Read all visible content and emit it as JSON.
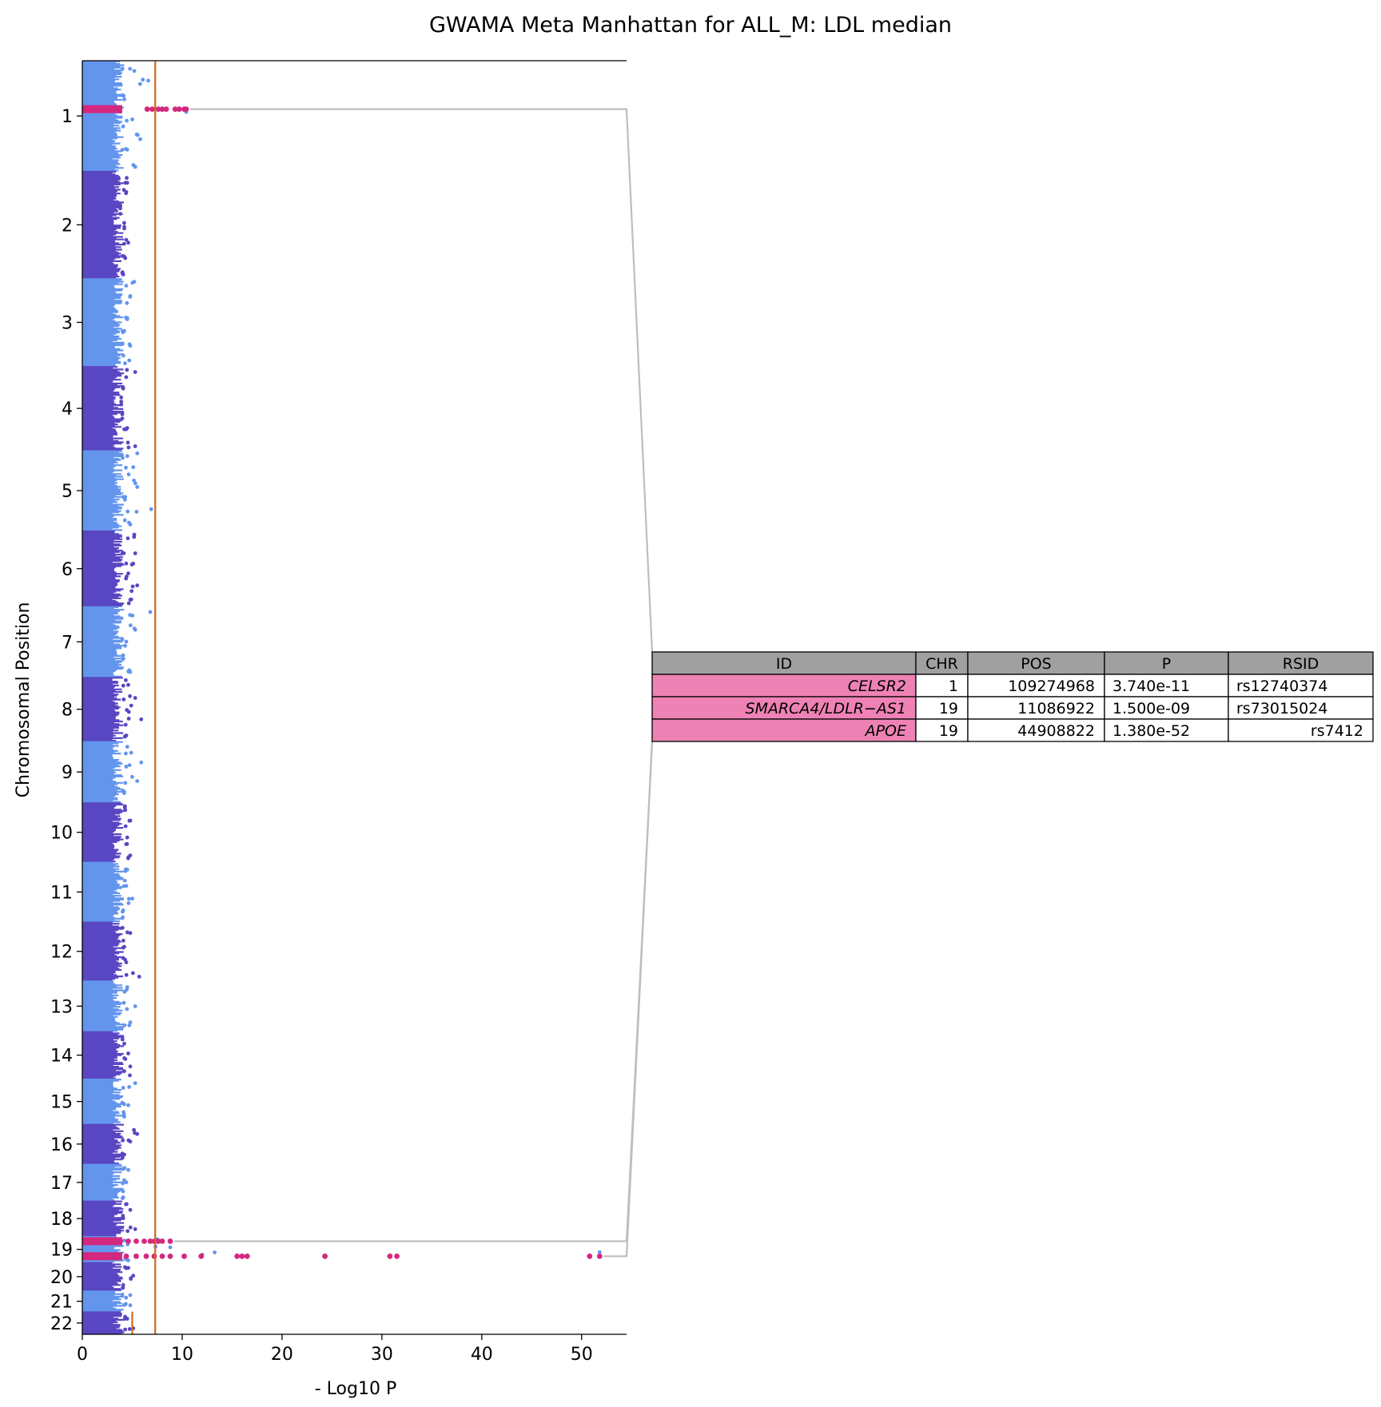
{
  "chart_data": {
    "type": "scatter",
    "title": "GWAMA Meta Manhattan for ALL_M: LDL median",
    "xlabel": "- Log10 P",
    "ylabel": "Chromosomal Position",
    "xlim": [
      0,
      54.5
    ],
    "x_ticks": [
      0,
      10,
      20,
      30,
      40,
      50
    ],
    "orientation": "horizontal",
    "grid": false,
    "chromosomes": [
      "1",
      "2",
      "3",
      "4",
      "5",
      "6",
      "7",
      "8",
      "9",
      "10",
      "11",
      "12",
      "13",
      "14",
      "15",
      "16",
      "17",
      "18",
      "19",
      "20",
      "21",
      "22"
    ],
    "chromosome_lengths_mb": [
      249,
      242,
      198,
      190,
      181,
      171,
      159,
      145,
      138,
      134,
      135,
      133,
      114,
      107,
      102,
      90,
      83,
      80,
      59,
      64,
      47,
      51
    ],
    "genome_wide_threshold": 7.3,
    "suggestive_threshold": 5.0,
    "colors": {
      "odd_chromosome": "#6495ED",
      "even_chromosome": "#5946C2",
      "highlight": "#D4287E",
      "threshold_line": "#D2691E",
      "connector": "#BEBEBE",
      "table_header": "#A0A0A0",
      "table_id_cell": "#EE82B4"
    },
    "background_peak_max": [
      [
        5.2,
        6.6,
        4.2,
        10.4,
        5.0,
        5.8,
        4.5,
        5.3
      ],
      [
        4.5,
        4.4,
        3.8,
        4.2,
        4.6,
        4.3,
        4.1
      ],
      [
        5.2,
        4.8,
        4.5,
        4.2,
        4.8,
        4.7
      ],
      [
        5.3,
        4.1,
        3.9,
        4.0,
        4.5,
        5.3
      ],
      [
        5.5,
        5.1,
        5.5,
        4.3,
        6.9,
        4.8
      ],
      [
        5.2,
        5.3,
        5.1,
        4.6,
        5.5,
        4.9
      ],
      [
        6.8,
        5.3,
        4.4,
        4.1,
        4.8
      ],
      [
        4.6,
        5.3,
        4.9,
        5.9,
        4.4
      ],
      [
        4.9,
        5.9,
        5.5,
        4.2
      ],
      [
        4.3,
        4.8,
        4.5,
        4.8
      ],
      [
        4.5,
        4.4,
        5.0,
        4.1
      ],
      [
        4.8,
        4.2,
        4.4,
        5.7
      ],
      [
        4.5,
        5.3,
        4.8
      ],
      [
        4.2,
        4.6,
        4.8
      ],
      [
        5.3,
        4.6,
        4.2
      ],
      [
        5.5,
        4.8,
        4.2
      ],
      [
        4.6,
        4.4,
        4.1
      ],
      [
        4.8,
        4.1,
        5.3
      ],
      [
        7.5,
        8.8,
        51.8,
        4.6
      ],
      [
        4.6,
        5.1,
        4.1
      ],
      [
        4.8,
        4.8
      ],
      [
        4.5,
        5.1
      ]
    ],
    "highlighted_loci": [
      {
        "chr": "1",
        "pos_mb": 109.27,
        "x": [
          0.5,
          1.1,
          1.8,
          2.4,
          3.0,
          3.6,
          6.5,
          7.0,
          7.6,
          8.0,
          8.4,
          9.3,
          9.7,
          10.2,
          10.4
        ]
      },
      {
        "chr": "19",
        "pos_mb": 11.09,
        "x": [
          0.5,
          1.3,
          2.1,
          3.0,
          3.8,
          4.6,
          5.4,
          6.2,
          6.8,
          7.2,
          7.6,
          8.0,
          8.8
        ]
      },
      {
        "chr": "19",
        "pos_mb": 44.91,
        "x": [
          0.5,
          1.4,
          2.4,
          3.4,
          4.4,
          5.4,
          6.4,
          7.2,
          8.0,
          8.8,
          10.2,
          11.9,
          15.5,
          16.0,
          16.5,
          24.3,
          30.8,
          31.5,
          50.8,
          51.8
        ]
      }
    ],
    "table": {
      "columns": [
        "ID",
        "CHR",
        "POS",
        "P",
        "RSID"
      ],
      "rows": [
        [
          "CELSR2",
          "1",
          "109274968",
          "3.740e-11",
          "rs12740374"
        ],
        [
          "SMARCA4/LDLR−AS1",
          "19",
          "11086922",
          "1.500e-09",
          "rs73015024"
        ],
        [
          "APOE",
          "19",
          "44908822",
          "1.380e-52",
          "rs7412"
        ]
      ]
    }
  }
}
